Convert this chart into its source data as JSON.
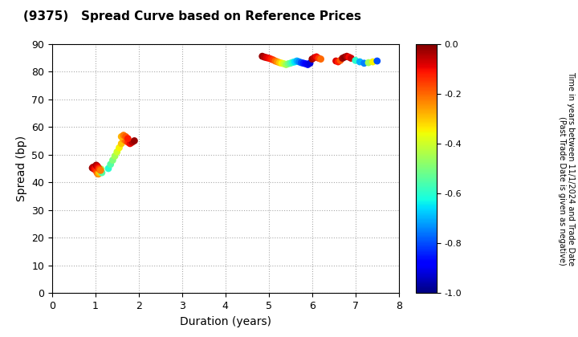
{
  "title": "(9375)   Spread Curve based on Reference Prices",
  "xlabel": "Duration (years)",
  "ylabel": "Spread (bp)",
  "colorbar_label_line1": "Time in years between 11/1/2024 and Trade Date",
  "colorbar_label_line2": "(Past Trade Date is given as negative)",
  "xlim": [
    0,
    8
  ],
  "ylim": [
    0,
    90
  ],
  "xticks": [
    0,
    1,
    2,
    3,
    4,
    5,
    6,
    7,
    8
  ],
  "yticks": [
    0,
    10,
    20,
    30,
    40,
    50,
    60,
    70,
    80,
    90
  ],
  "cmap": "jet",
  "vmin": -1.0,
  "vmax": 0.0,
  "cluster1": {
    "duration": [
      0.93,
      0.95,
      0.97,
      0.99,
      1.01,
      1.03,
      1.05,
      1.07,
      1.09,
      1.11,
      1.13,
      1.15,
      1.02,
      1.04,
      1.06,
      1.08,
      1.1,
      1.12
    ],
    "spread": [
      45.2,
      45.5,
      44.8,
      45.0,
      44.5,
      43.8,
      43.2,
      43.0,
      43.5,
      44.2,
      44.8,
      43.5,
      46.2,
      45.9,
      45.5,
      45.0,
      44.6,
      44.3
    ],
    "time": [
      -0.02,
      -0.05,
      -0.08,
      -0.1,
      -0.12,
      -0.16,
      -0.2,
      -0.25,
      -0.3,
      -0.38,
      -0.45,
      -0.55,
      -0.03,
      -0.06,
      -0.09,
      -0.14,
      -0.18,
      -0.22
    ]
  },
  "cluster2": {
    "duration": [
      1.3,
      1.35,
      1.4,
      1.45,
      1.5,
      1.55,
      1.6,
      1.65,
      1.7,
      1.75,
      1.8,
      1.85,
      1.9,
      1.6,
      1.65,
      1.7,
      1.75
    ],
    "spread": [
      45.0,
      46.5,
      48.0,
      49.5,
      51.0,
      52.5,
      54.0,
      55.5,
      55.0,
      54.5,
      54.0,
      54.5,
      55.0,
      56.5,
      57.0,
      56.5,
      55.8
    ],
    "time": [
      -0.6,
      -0.55,
      -0.5,
      -0.45,
      -0.4,
      -0.35,
      -0.3,
      -0.25,
      -0.2,
      -0.15,
      -0.1,
      -0.05,
      -0.02,
      -0.28,
      -0.22,
      -0.18,
      -0.12
    ]
  },
  "cluster3": {
    "duration": [
      4.85,
      4.9,
      4.95,
      5.0,
      5.05,
      5.1,
      5.15,
      5.2,
      5.25,
      5.3,
      5.35,
      5.4,
      5.45,
      5.5,
      5.55,
      5.6,
      5.65,
      5.7,
      5.75,
      5.8,
      5.85,
      5.9,
      5.95,
      6.0,
      6.05,
      6.1,
      6.15,
      6.2,
      6.55,
      6.6,
      6.65,
      6.7,
      6.75,
      6.8,
      6.85,
      6.9,
      7.0,
      7.1,
      7.2,
      7.3,
      7.4,
      7.5
    ],
    "spread": [
      85.5,
      85.2,
      85.0,
      84.8,
      84.5,
      84.2,
      83.8,
      83.5,
      83.2,
      83.0,
      82.8,
      82.5,
      82.8,
      83.0,
      83.3,
      83.5,
      83.8,
      83.5,
      83.2,
      83.0,
      82.8,
      82.5,
      83.0,
      84.5,
      85.0,
      85.3,
      84.8,
      84.5,
      83.8,
      83.5,
      84.0,
      84.8,
      85.2,
      85.5,
      85.2,
      84.8,
      84.0,
      83.5,
      83.0,
      83.2,
      83.5,
      83.8
    ],
    "time": [
      -0.02,
      -0.05,
      -0.08,
      -0.1,
      -0.12,
      -0.15,
      -0.2,
      -0.25,
      -0.3,
      -0.35,
      -0.4,
      -0.45,
      -0.5,
      -0.55,
      -0.6,
      -0.65,
      -0.7,
      -0.75,
      -0.8,
      -0.85,
      -0.88,
      -0.9,
      -0.92,
      -0.03,
      -0.06,
      -0.1,
      -0.15,
      -0.2,
      -0.08,
      -0.12,
      -0.18,
      -0.03,
      -0.01,
      -0.05,
      -0.1,
      -0.07,
      -0.6,
      -0.7,
      -0.75,
      -0.45,
      -0.35,
      -0.8
    ]
  },
  "background_color": "#ffffff",
  "grid_color": "#aaaaaa",
  "marker_size": 40
}
